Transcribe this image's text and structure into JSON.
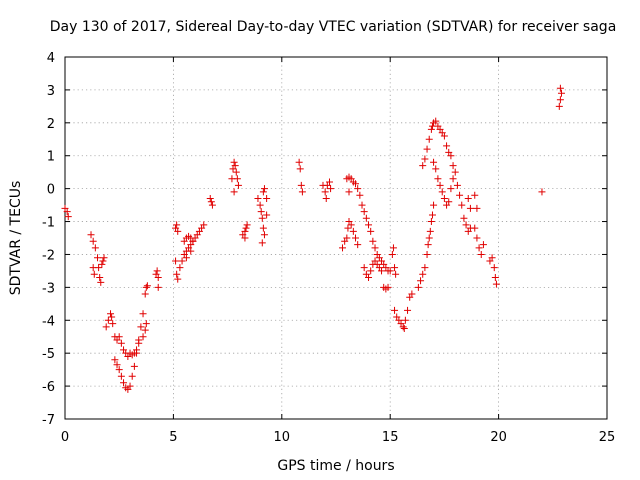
{
  "chart_data": {
    "type": "scatter",
    "title": "Day 130 of 2017, Sidereal Day-to-day VTEC variation (SDTVAR) for receiver saga",
    "xlabel": "GPS time / hours",
    "ylabel": "SDTVAR / TECUs",
    "xlim": [
      0,
      25
    ],
    "ylim": [
      -7,
      4
    ],
    "xticks": [
      "0",
      "5",
      "10",
      "15",
      "20",
      "25"
    ],
    "yticks": [
      "-7",
      "-6",
      "-5",
      "-4",
      "-3",
      "-2",
      "-1",
      "0",
      "1",
      "2",
      "3",
      "4"
    ],
    "grid": true,
    "marker": "plus",
    "color": "#e00000",
    "series": [
      {
        "name": "SDTVAR",
        "segments": [
          [
            [
              0.0,
              -0.6
            ],
            [
              0.1,
              -0.7
            ],
            [
              0.15,
              -0.85
            ]
          ],
          [
            [
              1.2,
              -1.4
            ],
            [
              1.3,
              -1.6
            ],
            [
              1.4,
              -1.8
            ],
            [
              1.5,
              -2.1
            ],
            [
              1.55,
              -2.4
            ],
            [
              1.6,
              -2.7
            ],
            [
              1.65,
              -2.85
            ],
            [
              1.7,
              -2.3
            ],
            [
              1.75,
              -2.2
            ],
            [
              1.8,
              -2.1
            ],
            [
              1.3,
              -2.4
            ],
            [
              1.35,
              -2.6
            ]
          ],
          [
            [
              1.9,
              -4.2
            ],
            [
              2.0,
              -4.0
            ],
            [
              2.1,
              -3.8
            ],
            [
              2.15,
              -3.9
            ],
            [
              2.2,
              -4.1
            ],
            [
              2.3,
              -4.5
            ],
            [
              2.4,
              -4.6
            ],
            [
              2.5,
              -4.5
            ],
            [
              2.6,
              -4.7
            ],
            [
              2.7,
              -4.9
            ],
            [
              2.8,
              -5.0
            ],
            [
              2.9,
              -5.1
            ],
            [
              3.0,
              -5.0
            ],
            [
              3.1,
              -5.05
            ],
            [
              3.2,
              -5.0
            ],
            [
              3.3,
              -4.9
            ],
            [
              3.4,
              -4.7
            ]
          ],
          [
            [
              2.3,
              -5.2
            ],
            [
              2.4,
              -5.35
            ],
            [
              2.5,
              -5.5
            ],
            [
              2.6,
              -5.7
            ],
            [
              2.7,
              -5.9
            ],
            [
              2.8,
              -6.05
            ],
            [
              2.9,
              -6.1
            ],
            [
              3.0,
              -6.0
            ],
            [
              3.1,
              -5.7
            ],
            [
              3.2,
              -5.4
            ],
            [
              3.3,
              -5.0
            ],
            [
              3.4,
              -4.6
            ],
            [
              3.5,
              -4.2
            ],
            [
              3.6,
              -3.8
            ],
            [
              3.7,
              -3.2
            ],
            [
              3.75,
              -3.0
            ],
            [
              3.8,
              -2.95
            ]
          ],
          [
            [
              3.6,
              -4.5
            ],
            [
              3.7,
              -4.3
            ],
            [
              3.75,
              -4.1
            ]
          ],
          [
            [
              4.2,
              -2.6
            ],
            [
              4.25,
              -2.5
            ],
            [
              4.3,
              -2.7
            ],
            [
              4.3,
              -3.0
            ]
          ],
          [
            [
              5.1,
              -1.2
            ],
            [
              5.15,
              -1.1
            ],
            [
              5.2,
              -1.3
            ],
            [
              5.1,
              -2.2
            ],
            [
              5.15,
              -2.6
            ],
            [
              5.2,
              -2.75
            ],
            [
              5.3,
              -2.4
            ],
            [
              5.4,
              -2.2
            ],
            [
              5.5,
              -2.0
            ],
            [
              5.6,
              -1.9
            ],
            [
              5.7,
              -1.8
            ],
            [
              5.8,
              -1.7
            ],
            [
              5.9,
              -1.6
            ],
            [
              6.0,
              -1.5
            ],
            [
              6.1,
              -1.4
            ],
            [
              6.2,
              -1.3
            ],
            [
              6.3,
              -1.2
            ],
            [
              6.4,
              -1.1
            ],
            [
              5.5,
              -1.6
            ],
            [
              5.6,
              -1.5
            ],
            [
              5.7,
              -1.45
            ],
            [
              5.8,
              -1.5
            ],
            [
              5.9,
              -1.6
            ],
            [
              5.6,
              -2.1
            ],
            [
              5.8,
              -1.9
            ]
          ],
          [
            [
              6.7,
              -0.3
            ],
            [
              6.75,
              -0.4
            ],
            [
              6.8,
              -0.5
            ]
          ],
          [
            [
              7.7,
              0.3
            ],
            [
              7.75,
              0.6
            ],
            [
              7.8,
              0.8
            ],
            [
              7.85,
              0.7
            ],
            [
              7.9,
              0.5
            ],
            [
              7.95,
              0.3
            ],
            [
              8.0,
              0.1
            ],
            [
              7.8,
              -0.1
            ]
          ],
          [
            [
              8.2,
              -1.4
            ],
            [
              8.3,
              -1.3
            ],
            [
              8.35,
              -1.2
            ],
            [
              8.4,
              -1.1
            ],
            [
              8.3,
              -1.5
            ]
          ],
          [
            [
              8.9,
              -0.3
            ],
            [
              9.0,
              -0.5
            ],
            [
              9.05,
              -0.7
            ],
            [
              9.1,
              -0.9
            ],
            [
              9.15,
              -1.2
            ],
            [
              9.2,
              -1.4
            ],
            [
              9.1,
              -1.65
            ],
            [
              9.15,
              -0.1
            ],
            [
              9.2,
              0.0
            ],
            [
              9.3,
              -0.3
            ],
            [
              9.3,
              -0.8
            ]
          ],
          [
            [
              10.8,
              0.8
            ],
            [
              10.85,
              0.6
            ],
            [
              10.9,
              0.1
            ],
            [
              10.95,
              -0.1
            ]
          ],
          [
            [
              11.9,
              0.1
            ],
            [
              12.0,
              -0.1
            ],
            [
              12.05,
              -0.3
            ],
            [
              12.1,
              0.1
            ],
            [
              12.2,
              0.2
            ],
            [
              12.25,
              0.0
            ]
          ],
          [
            [
              12.8,
              -1.8
            ],
            [
              12.9,
              -1.6
            ],
            [
              13.0,
              -1.5
            ],
            [
              13.05,
              -1.2
            ],
            [
              13.1,
              -1.0
            ],
            [
              13.2,
              -1.1
            ],
            [
              13.3,
              -1.3
            ],
            [
              13.4,
              -1.5
            ],
            [
              13.5,
              -1.7
            ]
          ],
          [
            [
              13.0,
              0.3
            ],
            [
              13.1,
              0.35
            ],
            [
              13.2,
              0.3
            ],
            [
              13.3,
              0.2
            ],
            [
              13.4,
              0.15
            ],
            [
              13.5,
              0.0
            ],
            [
              13.6,
              -0.2
            ],
            [
              13.1,
              -0.1
            ]
          ],
          [
            [
              13.7,
              -0.5
            ],
            [
              13.8,
              -0.7
            ],
            [
              13.9,
              -0.9
            ],
            [
              14.0,
              -1.1
            ],
            [
              14.1,
              -1.3
            ],
            [
              14.2,
              -1.6
            ],
            [
              14.3,
              -1.8
            ],
            [
              14.4,
              -2.0
            ],
            [
              14.5,
              -2.1
            ],
            [
              14.6,
              -2.2
            ],
            [
              14.7,
              -2.3
            ],
            [
              14.8,
              -2.4
            ],
            [
              14.9,
              -2.5
            ]
          ],
          [
            [
              13.8,
              -2.4
            ],
            [
              13.9,
              -2.6
            ],
            [
              14.0,
              -2.7
            ],
            [
              14.1,
              -2.5
            ],
            [
              14.2,
              -2.3
            ],
            [
              14.3,
              -2.2
            ],
            [
              14.4,
              -2.3
            ],
            [
              14.5,
              -2.4
            ],
            [
              14.6,
              -2.5
            ],
            [
              14.7,
              -3.0
            ],
            [
              14.8,
              -3.05
            ],
            [
              14.9,
              -3.0
            ],
            [
              15.0,
              -2.5
            ],
            [
              15.1,
              -2.0
            ],
            [
              15.15,
              -1.8
            ],
            [
              15.2,
              -2.4
            ],
            [
              15.25,
              -2.6
            ]
          ],
          [
            [
              15.2,
              -3.7
            ],
            [
              15.3,
              -3.9
            ],
            [
              15.4,
              -4.0
            ],
            [
              15.5,
              -4.1
            ],
            [
              15.6,
              -4.2
            ],
            [
              15.65,
              -4.25
            ],
            [
              15.7,
              -4.0
            ],
            [
              15.8,
              -3.7
            ],
            [
              15.9,
              -3.3
            ],
            [
              16.0,
              -3.2
            ]
          ],
          [
            [
              16.3,
              -3.0
            ],
            [
              16.4,
              -2.8
            ],
            [
              16.5,
              -2.6
            ],
            [
              16.6,
              -2.4
            ],
            [
              16.7,
              -2.0
            ],
            [
              16.75,
              -1.7
            ],
            [
              16.8,
              -1.5
            ],
            [
              16.85,
              -1.3
            ],
            [
              16.9,
              -1.0
            ],
            [
              16.95,
              -0.8
            ],
            [
              17.0,
              -0.5
            ]
          ],
          [
            [
              16.5,
              0.7
            ],
            [
              16.6,
              0.9
            ],
            [
              16.7,
              1.2
            ],
            [
              16.8,
              1.5
            ],
            [
              16.9,
              1.8
            ],
            [
              16.95,
              1.9
            ],
            [
              17.0,
              2.0
            ],
            [
              17.1,
              2.05
            ],
            [
              17.2,
              1.9
            ],
            [
              17.3,
              1.8
            ],
            [
              17.4,
              1.7
            ],
            [
              17.5,
              1.6
            ],
            [
              17.6,
              1.3
            ],
            [
              17.7,
              1.1
            ],
            [
              17.8,
              1.0
            ],
            [
              17.9,
              0.7
            ],
            [
              18.0,
              0.5
            ]
          ],
          [
            [
              17.0,
              0.8
            ],
            [
              17.1,
              0.6
            ],
            [
              17.2,
              0.3
            ],
            [
              17.3,
              0.1
            ],
            [
              17.4,
              -0.1
            ],
            [
              17.5,
              -0.3
            ],
            [
              17.6,
              -0.5
            ],
            [
              17.7,
              -0.4
            ],
            [
              17.8,
              0.0
            ],
            [
              17.9,
              0.3
            ]
          ],
          [
            [
              18.1,
              0.1
            ],
            [
              18.2,
              -0.2
            ],
            [
              18.3,
              -0.5
            ],
            [
              18.4,
              -0.9
            ],
            [
              18.5,
              -1.1
            ],
            [
              18.6,
              -1.3
            ],
            [
              18.7,
              -1.2
            ],
            [
              18.6,
              -0.3
            ],
            [
              18.7,
              -0.6
            ]
          ],
          [
            [
              18.9,
              -1.2
            ],
            [
              19.0,
              -1.5
            ],
            [
              19.1,
              -1.8
            ],
            [
              19.2,
              -2.0
            ],
            [
              19.3,
              -1.7
            ],
            [
              18.9,
              -0.2
            ],
            [
              19.0,
              -0.6
            ]
          ],
          [
            [
              19.6,
              -2.2
            ],
            [
              19.7,
              -2.1
            ],
            [
              19.8,
              -2.4
            ],
            [
              19.85,
              -2.7
            ],
            [
              19.9,
              -2.9
            ]
          ],
          [
            [
              22.0,
              -0.1
            ]
          ],
          [
            [
              22.8,
              2.5
            ],
            [
              22.85,
              2.7
            ],
            [
              22.9,
              2.9
            ],
            [
              22.85,
              3.05
            ]
          ]
        ]
      }
    ]
  }
}
